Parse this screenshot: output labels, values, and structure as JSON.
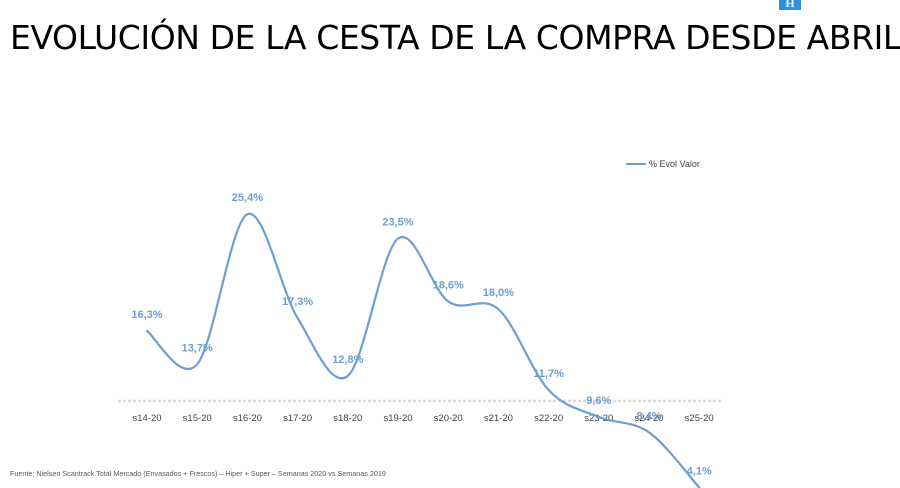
{
  "header": {
    "title": "EVOLUCIÓN DE LA CESTA DE LA COMPRA DESDE ABRIL",
    "logo_text": "H"
  },
  "footer": {
    "source": "Fuente: Nielsen Scantrack Total Mercado (Envasados + Frescos) – Hiper + Super  – Semanas 2020 vs Semanas 2019"
  },
  "chart_data": {
    "type": "line",
    "title": "EVOLUCIÓN DE LA CESTA DE LA COMPRA DESDE ABRIL",
    "categories": [
      "s14-20",
      "s15-20",
      "s16-20",
      "s17-20",
      "s18-20",
      "s19-20",
      "s20-20",
      "s21-20",
      "s22-20",
      "s23-20",
      "s24-20",
      "s25-20"
    ],
    "series": [
      {
        "name": "% Evol Valor",
        "values": [
          16.3,
          13.7,
          25.4,
          17.3,
          12.8,
          23.5,
          18.6,
          18.0,
          11.7,
          9.6,
          8.4,
          4.1
        ],
        "labels": [
          "16,3%",
          "13,7%",
          "25,4%",
          "17,3%",
          "12,8%",
          "23,5%",
          "18,6%",
          "18,0%",
          "11,7%",
          "9,6%",
          "8,4%",
          "4,1%"
        ],
        "color": "#6d9fd4"
      }
    ],
    "legend_position": "top-right",
    "grid": false,
    "smooth": true
  }
}
